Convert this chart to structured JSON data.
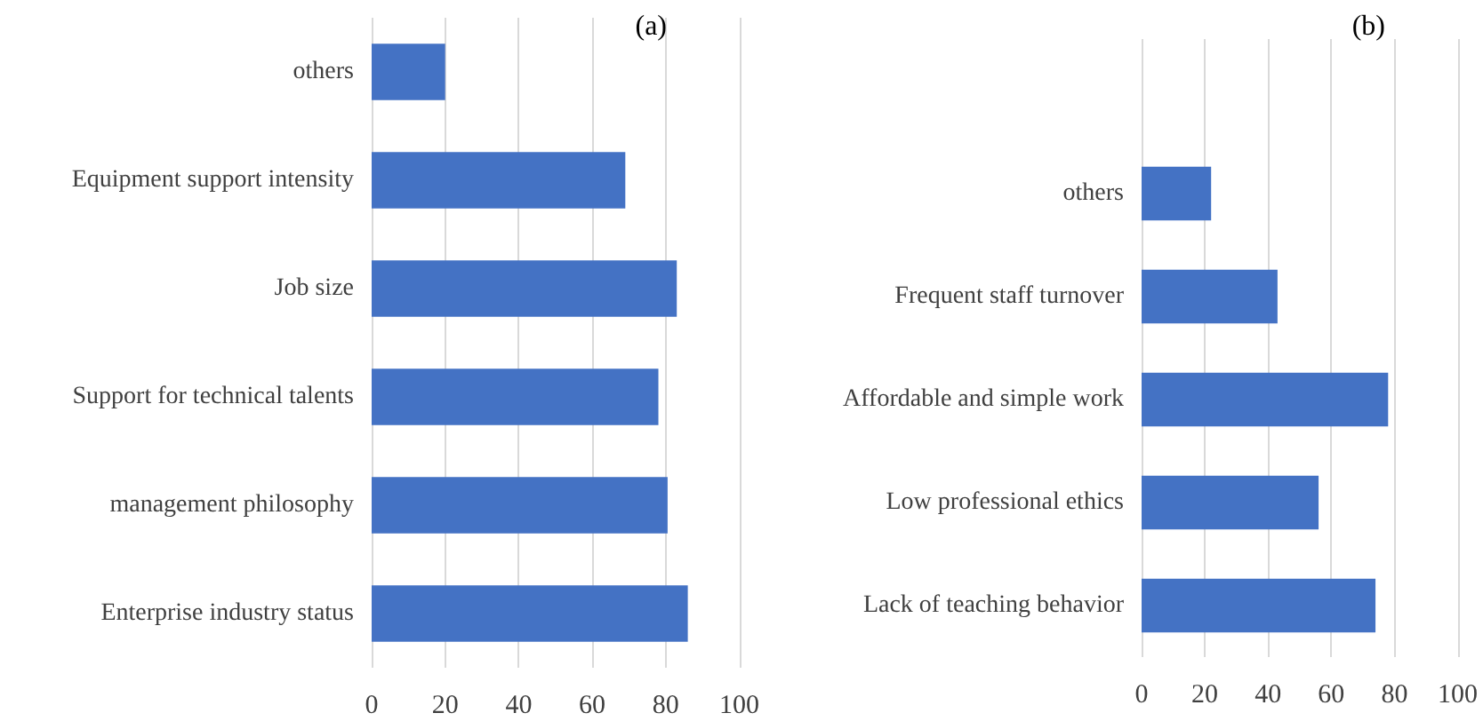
{
  "chart_data": [
    {
      "type": "bar",
      "orientation": "horizontal",
      "title": "(a)",
      "categories": [
        "others",
        "Equipment support intensity",
        "Job size",
        "Support for technical talents",
        "management philosophy",
        "Enterprise industry status"
      ],
      "values": [
        20,
        69,
        83,
        78,
        80.5,
        86
      ],
      "color": "#4472c4",
      "xlim": [
        0,
        100
      ],
      "xticks": [
        0,
        20,
        40,
        60,
        80,
        100
      ],
      "grid": "x"
    },
    {
      "type": "bar",
      "orientation": "horizontal",
      "title": "(b)",
      "categories": [
        null,
        "others",
        "Frequent staff turnover",
        "Affordable and simple work",
        "Low professional ethics",
        "Lack of teaching behavior"
      ],
      "values": [
        null,
        22,
        43,
        78,
        56,
        74
      ],
      "color": "#4472c4",
      "xlim": [
        0,
        100
      ],
      "xticks": [
        0,
        20,
        40,
        60,
        80,
        100
      ],
      "grid": "x"
    }
  ]
}
